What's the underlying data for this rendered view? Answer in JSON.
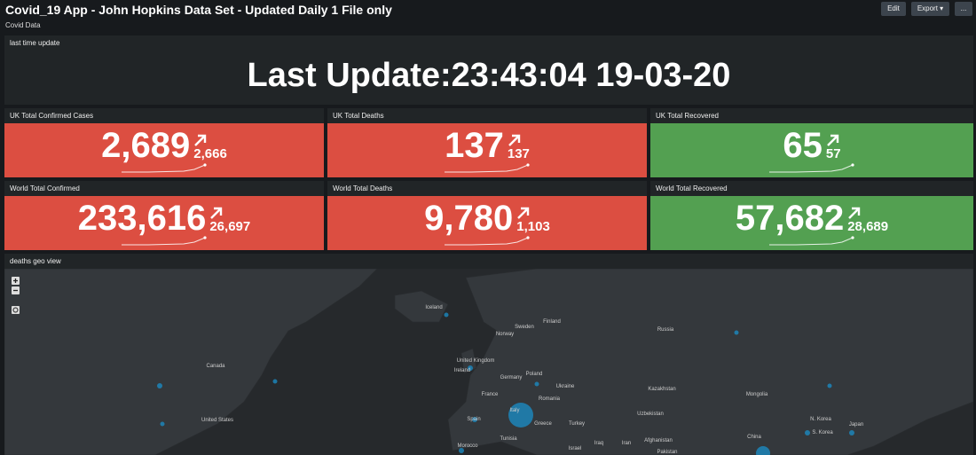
{
  "header": {
    "title": "Covid_19 App - John Hopkins Data Set - Updated Daily 1 File only",
    "subtitle": "Covid Data",
    "buttons": [
      "Edit",
      "Export",
      "..."
    ]
  },
  "update_panel": {
    "title": "last time update",
    "text": "Last Update:23:43:04 19-03-20"
  },
  "kpis": [
    {
      "title": "UK Total Confirmed Cases",
      "value": "2,689",
      "delta": "2,666",
      "color": "#dc4e41"
    },
    {
      "title": "UK Total Deaths",
      "value": "137",
      "delta": "137",
      "color": "#dc4e41"
    },
    {
      "title": "UK Total Recovered",
      "value": "65",
      "delta": "57",
      "color": "#53a051"
    },
    {
      "title": "World Total Confirmed",
      "value": "233,616",
      "delta": "26,697",
      "color": "#dc4e41"
    },
    {
      "title": "World Total Deaths",
      "value": "9,780",
      "delta": "1,103",
      "color": "#dc4e41"
    },
    {
      "title": "World Total Recovered",
      "value": "57,682",
      "delta": "28,689",
      "color": "#53a051"
    }
  ],
  "map": {
    "title": "deaths geo view",
    "labels": [
      "Iceland",
      "Sweden",
      "Finland",
      "Norway",
      "Russia",
      "Canada",
      "United Kingdom",
      "Ireland",
      "Poland",
      "Germany",
      "Ukraine",
      "France",
      "Kazakhstan",
      "Mongolia",
      "Romania",
      "Uzbekistan",
      "Spain",
      "Italy",
      "Greece",
      "Turkey",
      "United States",
      "N. Korea",
      "Japan",
      "S. Korea",
      "Tunisia",
      "Morocco",
      "Afghanistan",
      "China",
      "Iraq",
      "Iran",
      "Israel",
      "Pakistan"
    ]
  }
}
